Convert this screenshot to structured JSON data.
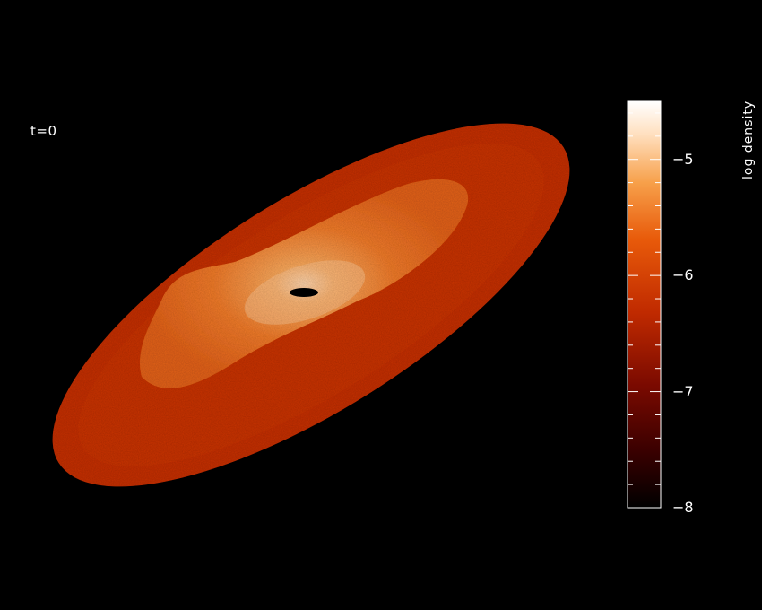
{
  "time_label": "t=0",
  "colorbar": {
    "label": "log density",
    "ticks": [
      "−5",
      "−6",
      "−7",
      "−8"
    ],
    "tick_values": [
      -5,
      -6,
      -7,
      -8
    ],
    "range": [
      -8,
      -4.5
    ],
    "colormap": [
      "#000000",
      "#3a0000",
      "#7a0a00",
      "#c02a00",
      "#e85a0a",
      "#f7a04a",
      "#ffe0c0",
      "#ffffff"
    ]
  },
  "colors": {
    "background": "#000000",
    "outer_disc": "#c42f05",
    "inner_disc": "#f07728",
    "hole": "#000000"
  }
}
